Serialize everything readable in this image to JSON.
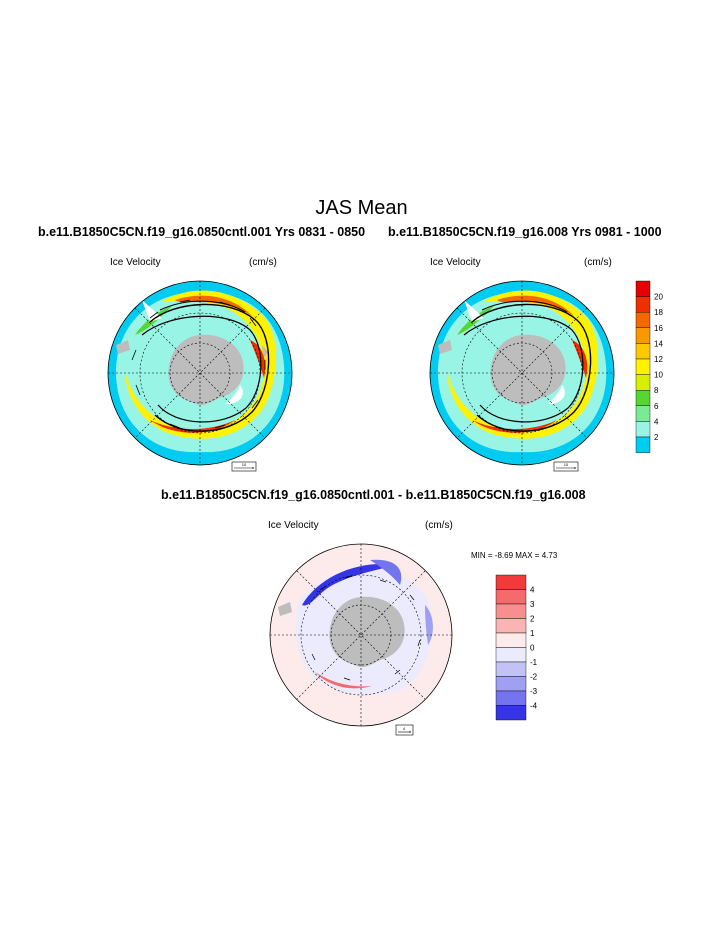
{
  "title": "JAS Mean",
  "panels": [
    {
      "title": "b.e11.B1850C5CN.f19_g16.0850cntl.001  Yrs 0831 - 0850",
      "variable": "Ice Velocity",
      "units": "(cm/s)",
      "ref_vector": "10"
    },
    {
      "title": "b.e11.B1850C5CN.f19_g16.008  Yrs 0981 - 1000",
      "variable": "Ice Velocity",
      "units": "(cm/s)",
      "ref_vector": "10"
    },
    {
      "title": "b.e11.B1850C5CN.f19_g16.0850cntl.001 - b.e11.B1850C5CN.f19_g16.008",
      "variable": "Ice Velocity",
      "units": "(cm/s)",
      "ref_vector": "4",
      "min_max": "MIN =  -8.69 MAX =   4.73"
    }
  ],
  "colorbars": {
    "velocity": {
      "labels": [
        "20",
        "18",
        "16",
        "14",
        "12",
        "10",
        "8",
        "6",
        "4",
        "2"
      ],
      "colors": [
        "#e60000",
        "#ee3000",
        "#f46800",
        "#fa9800",
        "#ffc800",
        "#fff200",
        "#d6f000",
        "#55d632",
        "#78ec92",
        "#98f5e6",
        "#00ccf2"
      ]
    },
    "difference": {
      "labels": [
        "4",
        "3",
        "2",
        "1",
        "0",
        "-1",
        "-2",
        "-3",
        "-4"
      ],
      "colors": [
        "#f33a3a",
        "#f56a6a",
        "#f78f8f",
        "#fab4b4",
        "#fdeaea",
        "#ebebfd",
        "#c2c2f7",
        "#a0a0f3",
        "#7474ee",
        "#3535e6"
      ]
    }
  },
  "chart_data": [
    {
      "type": "heatmap",
      "projection": "south-polar-stereographic",
      "title": "b.e11.B1850C5CN.f19_g16.0850cntl.001  Yrs 0831 - 0850",
      "field": "Ice Velocity",
      "units": "cm/s",
      "contour_levels": [
        2,
        4,
        6,
        8,
        10,
        12,
        14,
        16,
        18,
        20
      ],
      "vectors": true,
      "reference_vector": 10
    },
    {
      "type": "heatmap",
      "projection": "south-polar-stereographic",
      "title": "b.e11.B1850C5CN.f19_g16.008  Yrs 0981 - 1000",
      "field": "Ice Velocity",
      "units": "cm/s",
      "contour_levels": [
        2,
        4,
        6,
        8,
        10,
        12,
        14,
        16,
        18,
        20
      ],
      "vectors": true,
      "reference_vector": 10
    },
    {
      "type": "heatmap",
      "projection": "south-polar-stereographic",
      "title": "b.e11.B1850C5CN.f19_g16.0850cntl.001 - b.e11.B1850C5CN.f19_g16.008",
      "field": "Ice Velocity difference",
      "units": "cm/s",
      "contour_levels": [
        -4,
        -3,
        -2,
        -1,
        0,
        1,
        2,
        3,
        4
      ],
      "min": -8.69,
      "max": 4.73,
      "vectors": true,
      "reference_vector": 4
    }
  ]
}
